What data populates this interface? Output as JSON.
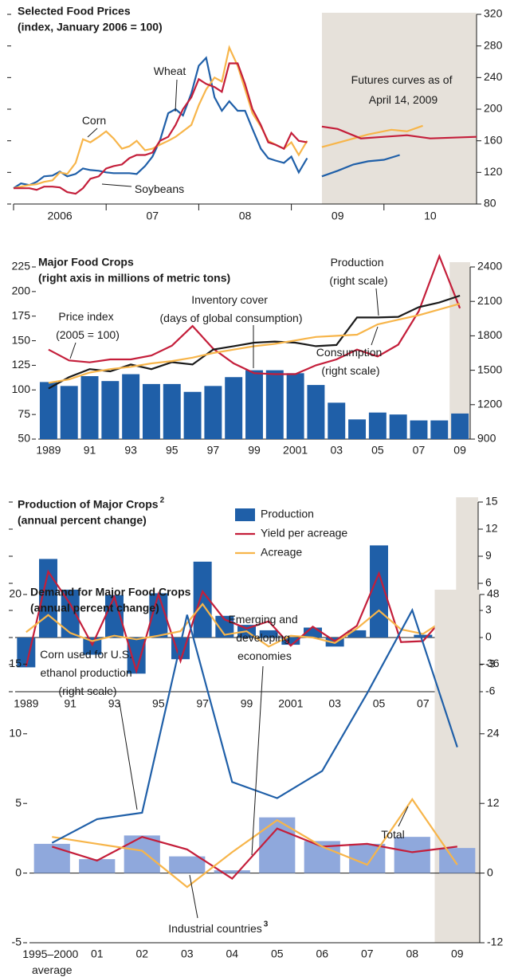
{
  "chart_data": [
    {
      "type": "line",
      "title": "Selected Food Prices",
      "subtitle": "(index, January 2006 = 100)",
      "x": [
        2006,
        2006.08,
        2006.17,
        2006.25,
        2006.33,
        2006.42,
        2006.5,
        2006.58,
        2006.67,
        2006.75,
        2006.83,
        2006.92,
        2007,
        2007.08,
        2007.17,
        2007.25,
        2007.33,
        2007.42,
        2007.5,
        2007.58,
        2007.67,
        2007.75,
        2007.83,
        2007.92,
        2008,
        2008.08,
        2008.17,
        2008.25,
        2008.33,
        2008.42,
        2008.5,
        2008.58,
        2008.67,
        2008.75,
        2008.83,
        2008.92,
        2009,
        2009.08,
        2009.17
      ],
      "series": [
        {
          "name": "Wheat",
          "color": "#1f5fa8",
          "values": [
            100,
            106,
            104,
            108,
            115,
            116,
            121,
            115,
            118,
            125,
            123,
            122,
            120,
            119,
            119,
            119,
            118,
            128,
            140,
            160,
            195,
            200,
            192,
            220,
            255,
            265,
            215,
            198,
            210,
            198,
            198,
            175,
            150,
            138,
            135,
            132,
            140,
            120,
            138
          ]
        },
        {
          "name": "Corn",
          "color": "#f7b54a",
          "values": [
            100,
            102,
            104,
            105,
            108,
            110,
            120,
            118,
            132,
            162,
            158,
            165,
            172,
            163,
            150,
            153,
            160,
            148,
            150,
            155,
            160,
            165,
            172,
            180,
            205,
            225,
            240,
            235,
            278,
            255,
            225,
            195,
            178,
            160,
            155,
            150,
            158,
            142,
            160
          ]
        },
        {
          "name": "Soybeans",
          "color": "#c41e3a",
          "values": [
            100,
            100,
            100,
            98,
            102,
            102,
            101,
            95,
            93,
            100,
            112,
            115,
            125,
            128,
            130,
            138,
            142,
            142,
            145,
            160,
            165,
            180,
            200,
            215,
            238,
            232,
            228,
            222,
            258,
            258,
            232,
            200,
            180,
            158,
            155,
            150,
            170,
            160,
            158
          ]
        },
        {
          "color": "#1f5fa8",
          "x": [
            2009.33,
            2009.5,
            2009.67,
            2009.83,
            2010,
            2010.17
          ],
          "values": [
            115,
            122,
            130,
            134,
            136,
            142
          ]
        },
        {
          "color": "#f7b54a",
          "x": [
            2009.33,
            2009.58,
            2009.83,
            2010.08,
            2010.25,
            2010.42
          ],
          "values": [
            152,
            160,
            168,
            174,
            172,
            179
          ]
        },
        {
          "color": "#c41e3a",
          "x": [
            2009.33,
            2009.5,
            2009.75,
            2010,
            2010.25,
            2010.5,
            2010.75,
            2011
          ],
          "values": [
            178,
            175,
            163,
            165,
            167,
            163,
            164,
            165
          ]
        }
      ],
      "annotations": [
        "Futures curves as of April 14, 2009"
      ],
      "xlim": [
        2006,
        2011
      ],
      "xticks": [
        {
          "value": 2006.5,
          "label": "2006"
        },
        {
          "value": 2007.5,
          "label": "07"
        },
        {
          "value": 2008.5,
          "label": "08"
        },
        {
          "value": 2009.5,
          "label": "09"
        },
        {
          "value": 2010.5,
          "label": "10"
        }
      ],
      "ylim": [
        80,
        320
      ],
      "yticks": [
        80,
        120,
        160,
        200,
        240,
        280,
        320
      ],
      "y_axis_side": "right",
      "shade_color": "#e6e1da"
    },
    {
      "type": "combo",
      "title": "Major Food Crops",
      "subtitle": "(right axis in millions of metric tons)",
      "categories": [
        "1989",
        null,
        "91",
        null,
        "93",
        null,
        "95",
        null,
        "97",
        null,
        "99",
        null,
        "2001",
        null,
        "03",
        null,
        "05",
        null,
        "07",
        null,
        "09"
      ],
      "series": [
        {
          "name": "Inventory cover (days of global consumption)",
          "kind": "bar",
          "color": "#1f5fa8",
          "values": [
            108,
            104,
            114,
            109,
            116,
            106,
            106,
            98,
            104,
            113,
            120,
            120,
            117,
            105,
            87,
            70,
            77,
            75,
            69,
            69,
            76
          ]
        },
        {
          "name": "Price index (2005 = 100)",
          "kind": "line",
          "color": "#c41e3a",
          "values": [
            141,
            130,
            128,
            131,
            131,
            135,
            145,
            165,
            142,
            127,
            117,
            116,
            116,
            125,
            131,
            141,
            134,
            146,
            180,
            236,
            183
          ]
        },
        {
          "name": "Production (right scale)",
          "kind": "line",
          "axis": "y2",
          "color": "#1a1a1a",
          "values": [
            1340,
            1440,
            1510,
            1490,
            1550,
            1510,
            1570,
            1550,
            1680,
            1710,
            1740,
            1750,
            1740,
            1710,
            1720,
            1960,
            1960,
            1965,
            2050,
            2090,
            2150
          ]
        },
        {
          "name": "Consumption (right scale)",
          "kind": "line",
          "axis": "y2",
          "color": "#f7b54a",
          "values": [
            1390,
            1420,
            1480,
            1510,
            1530,
            1560,
            1580,
            1610,
            1650,
            1680,
            1710,
            1730,
            1760,
            1790,
            1800,
            1810,
            1900,
            1940,
            1980,
            2030,
            2080
          ]
        }
      ],
      "ylim": [
        50,
        225
      ],
      "yticks": [
        50,
        75,
        100,
        125,
        150,
        175,
        200,
        225
      ],
      "y2lim": [
        900,
        2400
      ],
      "y2ticks": [
        900,
        1200,
        1500,
        1800,
        2100,
        2400
      ],
      "shade_color": "#e6e1da"
    },
    {
      "type": "combo",
      "title": "Production of Major Crops",
      "title_footnote": "2",
      "subtitle": "(annual percent change)",
      "categories": [
        "1989",
        null,
        "91",
        null,
        "93",
        null,
        "95",
        null,
        "97",
        null,
        "99",
        null,
        "2001",
        null,
        "03",
        null,
        "05",
        null,
        "07",
        null,
        "09"
      ],
      "series": [
        {
          "name": "Production",
          "kind": "bar",
          "color": "#1f5fa8",
          "values": [
            -3.3,
            8.7,
            5.3,
            -1.9,
            4.7,
            -4.0,
            4.9,
            -2.4,
            8.4,
            2.4,
            1.4,
            0.8,
            -0.8,
            1.1,
            -1.0,
            0.8,
            10.2,
            0,
            0.3,
            4.4,
            3.6
          ]
        },
        {
          "name": "Yield per acreage",
          "kind": "line",
          "color": "#c41e3a",
          "values": [
            -3.2,
            7.3,
            3.7,
            -0.8,
            4.5,
            -3.7,
            4.8,
            -2.6,
            5.1,
            2.0,
            1.0,
            1.8,
            -0.9,
            1.2,
            -0.4,
            1.3,
            7.1,
            -0.5,
            -0.4,
            2.4,
            3.0
          ]
        },
        {
          "name": "Acreage",
          "kind": "line",
          "color": "#f7b54a",
          "values": [
            0.6,
            2.5,
            0.5,
            -0.4,
            0.2,
            -0.2,
            0.2,
            0.7,
            3.7,
            0.3,
            0.7,
            -1.0,
            0.2,
            0,
            -0.6,
            1.0,
            3.0,
            0.9,
            0.4,
            2.0,
            1.5
          ]
        }
      ],
      "ylim": [
        -6,
        15
      ],
      "yticks": [
        -6,
        -3,
        0,
        3,
        6,
        9,
        12,
        15
      ],
      "y_axis_side": "right",
      "legend": "upper center",
      "shade_color": "#e6e1da"
    },
    {
      "type": "combo",
      "title": "Demand for Major Food Crops",
      "subtitle": "(annual percent change)",
      "categories": [
        "1995–2000 average",
        "01",
        "02",
        "03",
        "04",
        "05",
        "06",
        "07",
        "08",
        "09"
      ],
      "series": [
        {
          "name": "Industrial countries",
          "footnote": "3",
          "kind": "bar",
          "color": "#8fa8dc",
          "values": [
            2.1,
            1.0,
            2.7,
            1.2,
            0.2,
            4.0,
            2.3,
            2.1,
            2.6,
            1.8
          ]
        },
        {
          "name": "Emerging and developing economies",
          "kind": "line",
          "color": "#c41e3a",
          "values": [
            1.9,
            0.9,
            2.6,
            1.7,
            -0.4,
            3.2,
            1.9,
            2.1,
            1.5,
            1.9
          ]
        },
        {
          "name": "Total",
          "kind": "line",
          "color": "#f7b54a",
          "values": [
            2.6,
            2.1,
            1.6,
            -1.0,
            1.5,
            3.8,
            1.9,
            0.6,
            5.3,
            0.6
          ]
        },
        {
          "name": "Corn used for U.S. ethanol production (right scale)",
          "kind": "line",
          "axis": "y2",
          "color": "#1f5fa8",
          "values": [
            5.2,
            9.3,
            10.4,
            44.5,
            15.7,
            12.9,
            17.6,
            31,
            45.3,
            21.7
          ]
        }
      ],
      "ylim": [
        -5,
        20
      ],
      "yticks": [
        -5,
        0,
        5,
        10,
        15,
        20
      ],
      "y2lim": [
        -12,
        48
      ],
      "y2ticks": [
        -12,
        0,
        12,
        24,
        36,
        48
      ],
      "shade_color": "#e6e1da"
    }
  ]
}
